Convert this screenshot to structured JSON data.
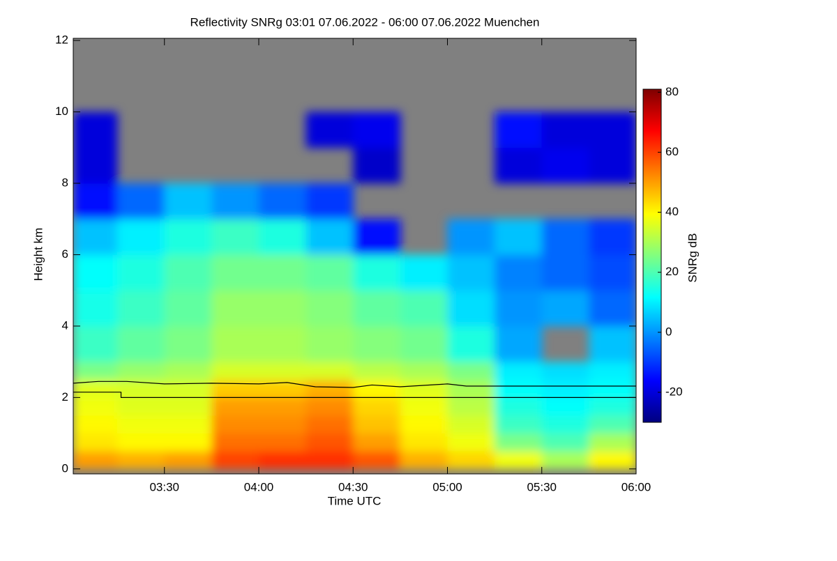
{
  "chart_data": {
    "type": "heatmap",
    "title": "Reflectivity SNRg   03:01 07.06.2022 - 06:00 07.06.2022 Muenchen",
    "x_label": "Time UTC",
    "y_label": "Height km",
    "colorbar_label": "SNRg dB",
    "xlim": [
      3.0167,
      6.0
    ],
    "ylim": [
      -0.14,
      12.06
    ],
    "clim": [
      -30,
      81
    ],
    "xticks": [
      {
        "value": 3.5,
        "label": "03:30"
      },
      {
        "value": 4.0,
        "label": "04:00"
      },
      {
        "value": 4.5,
        "label": "04:30"
      },
      {
        "value": 5.0,
        "label": "05:00"
      },
      {
        "value": 5.5,
        "label": "05:30"
      },
      {
        "value": 6.0,
        "label": "06:00"
      }
    ],
    "yticks": [
      0,
      2,
      4,
      6,
      8,
      10,
      12
    ],
    "cticks": [
      -20,
      0,
      20,
      40,
      60,
      80
    ],
    "colormap": [
      "#00007f",
      "#0000ff",
      "#0080ff",
      "#00ffff",
      "#80ff80",
      "#ffff00",
      "#ff8000",
      "#ff0000",
      "#7f0000"
    ],
    "missing_color": "#808080",
    "x": [
      3.0167,
      3.25,
      3.5,
      3.75,
      4.0,
      4.25,
      4.5,
      4.75,
      5.0,
      5.25,
      5.5,
      5.75,
      6.0
    ],
    "y": [
      0,
      0.5,
      1,
      1.5,
      2,
      2.5,
      3,
      4,
      5,
      6,
      7,
      8,
      9,
      10,
      11,
      12
    ],
    "z": [
      [
        50,
        48,
        50,
        60,
        62,
        62,
        58,
        48,
        44,
        38,
        30,
        40
      ],
      [
        42,
        40,
        40,
        55,
        55,
        58,
        50,
        42,
        38,
        25,
        20,
        30
      ],
      [
        40,
        38,
        38,
        52,
        52,
        55,
        46,
        40,
        35,
        18,
        15,
        20
      ],
      [
        38,
        36,
        36,
        50,
        50,
        52,
        44,
        38,
        32,
        15,
        12,
        15
      ],
      [
        36,
        35,
        35,
        45,
        45,
        48,
        40,
        36,
        30,
        12,
        10,
        12
      ],
      [
        25,
        28,
        30,
        35,
        35,
        35,
        32,
        30,
        25,
        10,
        8,
        10
      ],
      [
        18,
        22,
        25,
        30,
        30,
        28,
        26,
        24,
        15,
        2,
        null,
        5
      ],
      [
        14,
        18,
        22,
        28,
        28,
        26,
        22,
        20,
        8,
        0,
        2,
        -5
      ],
      [
        12,
        15,
        20,
        24,
        24,
        22,
        15,
        10,
        5,
        -2,
        -5,
        -8
      ],
      [
        5,
        10,
        15,
        18,
        15,
        5,
        -15,
        null,
        0,
        5,
        -5,
        -10
      ],
      [
        -15,
        -5,
        5,
        0,
        -5,
        -10,
        null,
        null,
        null,
        null,
        null,
        null
      ],
      [
        -20,
        null,
        null,
        null,
        null,
        null,
        -22,
        null,
        null,
        -20,
        -18,
        -20
      ],
      [
        -20,
        null,
        null,
        null,
        null,
        -20,
        -18,
        null,
        null,
        -15,
        -20,
        -20
      ],
      [
        null,
        null,
        null,
        null,
        null,
        null,
        null,
        null,
        null,
        null,
        null,
        null
      ],
      [
        null,
        null,
        null,
        null,
        null,
        null,
        null,
        null,
        null,
        null,
        null,
        null
      ]
    ],
    "lines": [
      {
        "color": "#000000",
        "x": [
          3.0167,
          3.15,
          3.3,
          3.5,
          3.75,
          4.0,
          4.15,
          4.3,
          4.5,
          4.6,
          4.75,
          5.0,
          5.1,
          5.25,
          6.0
        ],
        "y": [
          2.4,
          2.45,
          2.45,
          2.38,
          2.4,
          2.38,
          2.42,
          2.3,
          2.28,
          2.35,
          2.3,
          2.38,
          2.32,
          2.32,
          2.32
        ]
      },
      {
        "color": "#000000",
        "x": [
          3.0167,
          3.27,
          3.27,
          6.0
        ],
        "y": [
          2.15,
          2.15,
          2.0,
          2.0
        ]
      }
    ]
  }
}
